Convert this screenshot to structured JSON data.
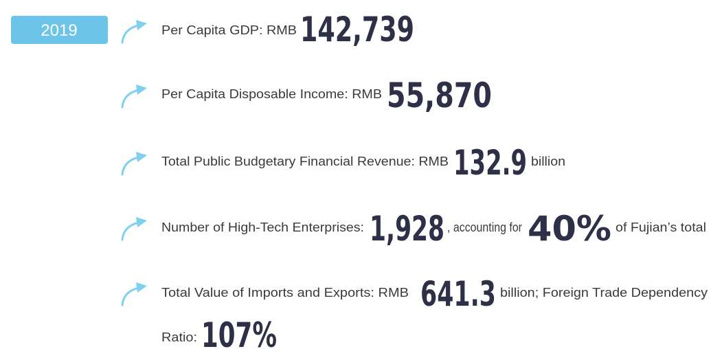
{
  "badge": "2019",
  "items": [
    {
      "label": "Per Capita GDP: RMB",
      "figure": "142,739"
    },
    {
      "label": "Per Capita Disposable Income: RMB",
      "figure": "55,870"
    },
    {
      "label": "Total Public Budgetary Financial Revenue: RMB",
      "figure": "132.9",
      "suffix": "billion"
    },
    {
      "label": "Number of High-Tech Enterprises:",
      "figure": "1,928",
      "middle": ", accounting for",
      "figure2": "40%",
      "suffix": "of Fujian’s total"
    },
    {
      "label": "Total Value of Imports and Exports: RMB",
      "figure": "641.3",
      "middle": "billion; Foreign Trade Dependency",
      "label2": "Ratio:",
      "figure2": "107%"
    }
  ]
}
